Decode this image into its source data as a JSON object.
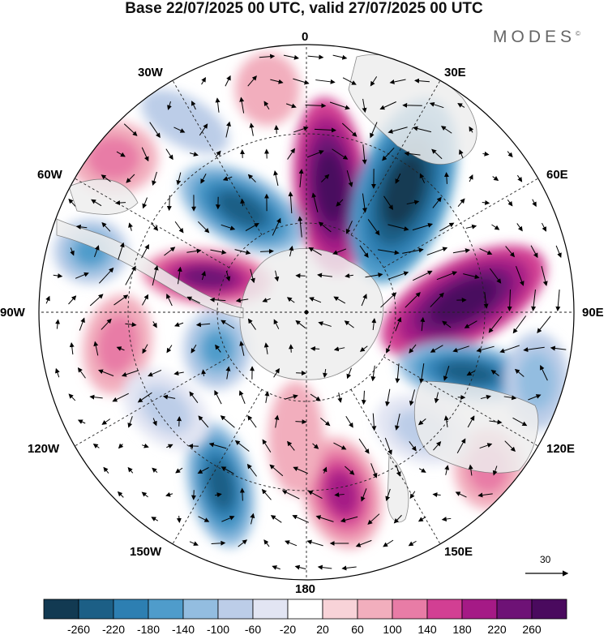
{
  "title": "Base 22/07/2025 00 UTC, valid 27/07/2025 00 UTC",
  "brand": "MODES",
  "brand_mark": "©",
  "longitude_labels": {
    "lon_0": "0",
    "lon_30e": "30E",
    "lon_60e": "60E",
    "lon_90e": "90E",
    "lon_120e": "120E",
    "lon_150e": "150E",
    "lon_180": "180",
    "lon_150w": "150W",
    "lon_120w": "120W",
    "lon_90w": "90W",
    "lon_60w": "60W",
    "lon_30w": "30W"
  },
  "reference_vector": {
    "label": "30"
  },
  "colorbar": {
    "tick_labels": [
      "-260",
      "-220",
      "-180",
      "-140",
      "-100",
      "-60",
      "-20",
      "20",
      "60",
      "100",
      "140",
      "180",
      "220",
      "260"
    ],
    "colors": [
      "#123a52",
      "#1c5f86",
      "#2d7fb2",
      "#4f9ccb",
      "#93bde0",
      "#bccde8",
      "#e2e5f3",
      "#ffffff",
      "#f8d3d8",
      "#f2aebd",
      "#e87ca6",
      "#d23f93",
      "#a51a86",
      "#6e1276",
      "#4a0a5e"
    ]
  },
  "colors": {
    "land": "#eeeeee",
    "coast": "#777777",
    "grid": "#222222"
  }
}
